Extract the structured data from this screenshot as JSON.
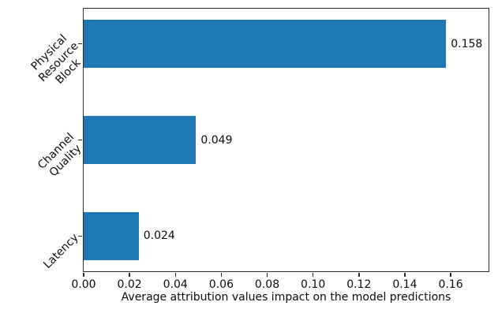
{
  "chart_data": {
    "type": "bar",
    "orientation": "horizontal",
    "title": "",
    "xlabel": "Average attribution values impact on the model predictions",
    "ylabel": "",
    "categories": [
      "Physical\nResource\nBlock",
      "Channel\nQuality",
      "Latency"
    ],
    "values": [
      0.158,
      0.049,
      0.024
    ],
    "value_labels": [
      "0.158",
      "0.049",
      "0.024"
    ],
    "xlim": [
      0,
      0.1765
    ],
    "xticks": [
      0.0,
      0.02,
      0.04,
      0.06,
      0.08,
      0.1,
      0.12,
      0.14,
      0.16
    ],
    "xtick_labels": [
      "0.00",
      "0.02",
      "0.04",
      "0.06",
      "0.08",
      "0.10",
      "0.12",
      "0.14",
      "0.16"
    ],
    "grid": false,
    "legend": "none",
    "bar_color": "#1f77b4",
    "spine_color": "#2b2b2b",
    "text_color": "#0b0b0b",
    "bar_height_frac": 0.5,
    "edge_pad_frac": 0.366
  }
}
